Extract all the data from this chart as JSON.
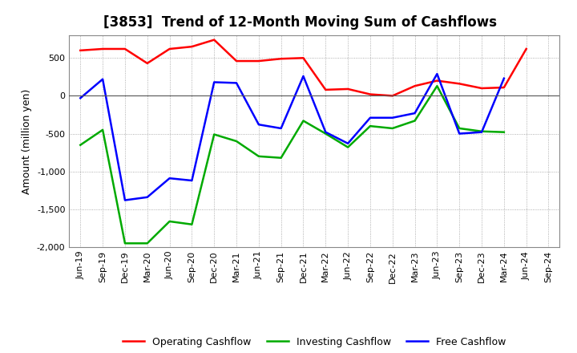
{
  "title": "[3853]  Trend of 12-Month Moving Sum of Cashflows",
  "ylabel": "Amount (million yen)",
  "xlabels": [
    "Jun-19",
    "Sep-19",
    "Dec-19",
    "Mar-20",
    "Jun-20",
    "Sep-20",
    "Dec-20",
    "Mar-21",
    "Jun-21",
    "Sep-21",
    "Dec-21",
    "Mar-22",
    "Jun-22",
    "Sep-22",
    "Dec-22",
    "Mar-23",
    "Jun-23",
    "Sep-23",
    "Dec-23",
    "Mar-24",
    "Jun-24",
    "Sep-24"
  ],
  "operating": [
    600,
    620,
    620,
    430,
    620,
    650,
    740,
    460,
    460,
    490,
    500,
    80,
    90,
    20,
    0,
    130,
    200,
    160,
    100,
    110,
    620,
    null
  ],
  "investing": [
    -650,
    -450,
    -1950,
    -1950,
    -1660,
    -1700,
    -510,
    -600,
    -800,
    -820,
    -330,
    -500,
    -680,
    -400,
    -430,
    -330,
    130,
    -430,
    -470,
    -480,
    null,
    null
  ],
  "free": [
    -30,
    220,
    -1380,
    -1340,
    -1090,
    -1120,
    180,
    170,
    -380,
    -430,
    260,
    -480,
    -630,
    -290,
    -290,
    -230,
    290,
    -500,
    -480,
    230,
    null,
    null
  ],
  "ylim": [
    -2000,
    800
  ],
  "yticks": [
    -2000,
    -1500,
    -1000,
    -500,
    0,
    500
  ],
  "operating_color": "#ff0000",
  "investing_color": "#00aa00",
  "free_color": "#0000ff",
  "bg_color": "#ffffff",
  "grid_color": "#999999",
  "title_fontsize": 12,
  "axis_label_fontsize": 9,
  "tick_fontsize": 8,
  "legend_fontsize": 9
}
